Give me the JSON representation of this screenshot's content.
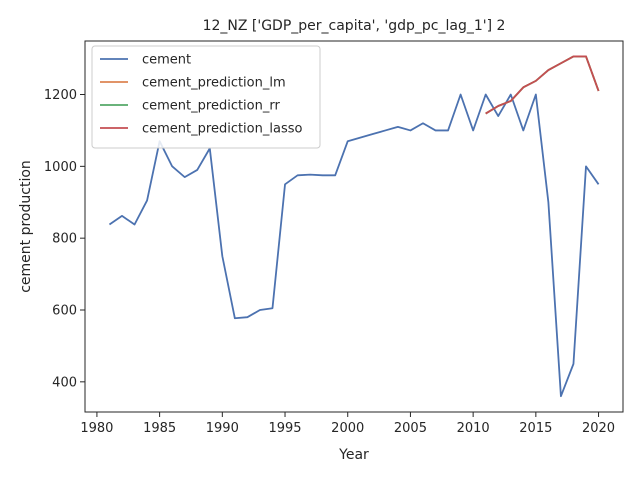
{
  "chart_data": {
    "type": "line",
    "title": "12_NZ ['GDP_per_capita', 'gdp_pc_lag_1'] 2",
    "xlabel": "Year",
    "ylabel": "cement production",
    "xlim": [
      1979.05,
      2021.95
    ],
    "ylim": [
      316,
      1349
    ],
    "xticks": [
      1980,
      1985,
      1990,
      1995,
      2000,
      2005,
      2010,
      2015,
      2020
    ],
    "yticks": [
      400,
      600,
      800,
      1000,
      1200
    ],
    "legend_position": "upper-left",
    "grid": false,
    "series": [
      {
        "name": "cement",
        "color": "#4c72b0",
        "x": [
          1981,
          1982,
          1983,
          1984,
          1985,
          1986,
          1987,
          1988,
          1989,
          1990,
          1991,
          1992,
          1993,
          1994,
          1995,
          1996,
          1997,
          1998,
          1999,
          2000,
          2001,
          2002,
          2003,
          2004,
          2005,
          2006,
          2007,
          2008,
          2009,
          2010,
          2011,
          2012,
          2013,
          2014,
          2015,
          2016,
          2017,
          2018,
          2019,
          2020
        ],
        "y": [
          838,
          862,
          838,
          905,
          1070,
          1000,
          970,
          990,
          1050,
          750,
          577,
          580,
          600,
          605,
          950,
          975,
          977,
          975,
          975,
          1070,
          1080,
          1090,
          1100,
          1110,
          1100,
          1120,
          1100,
          1100,
          1200,
          1100,
          1200,
          1140,
          1200,
          1100,
          1200,
          900,
          360,
          450,
          1000,
          950
        ]
      },
      {
        "name": "cement_prediction_lm",
        "color": "#dd8452",
        "x": [
          2011,
          2012,
          2013,
          2014,
          2015,
          2016,
          2017,
          2018,
          2019,
          2020
        ],
        "y": [
          1147,
          1168,
          1182,
          1220,
          1238,
          1268,
          1287,
          1306,
          1306,
          1210
        ]
      },
      {
        "name": "cement_prediction_rr",
        "color": "#55a868",
        "x": [
          2011,
          2012,
          2013,
          2014,
          2015,
          2016,
          2017,
          2018,
          2019,
          2020
        ],
        "y": [
          1147,
          1168,
          1182,
          1220,
          1238,
          1268,
          1287,
          1306,
          1306,
          1210
        ]
      },
      {
        "name": "cement_prediction_lasso",
        "color": "#c44e52",
        "x": [
          2011,
          2012,
          2013,
          2014,
          2015,
          2016,
          2017,
          2018,
          2019,
          2020
        ],
        "y": [
          1147,
          1168,
          1182,
          1220,
          1238,
          1268,
          1287,
          1306,
          1306,
          1210
        ]
      }
    ]
  }
}
